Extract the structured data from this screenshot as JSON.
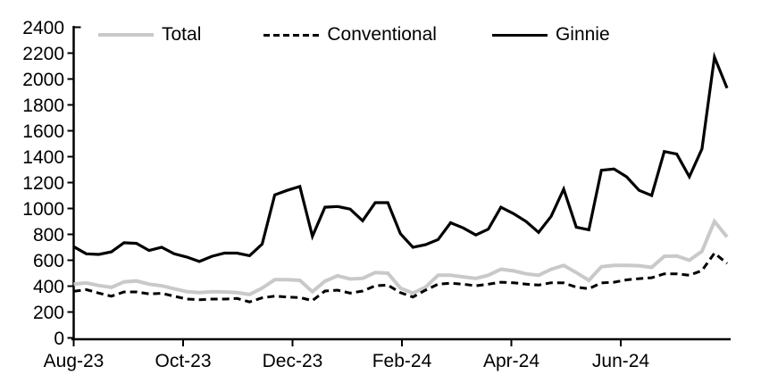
{
  "chart_data": {
    "type": "line",
    "title": "",
    "xlabel": "",
    "ylabel": "",
    "ylim": [
      0,
      2400
    ],
    "y_tick_step": 200,
    "y_tick_labels": [
      "0",
      "200",
      "400",
      "600",
      "800",
      "1000",
      "1200",
      "1400",
      "1600",
      "1800",
      "2000",
      "2200",
      "2400"
    ],
    "x_tick_labels": [
      "Aug-23",
      "Oct-23",
      "Dec-23",
      "Feb-24",
      "Apr-24",
      "Jun-24"
    ],
    "x_frequency": "weekly",
    "grid": false,
    "legend_position": "top",
    "series": [
      {
        "name": "Total",
        "style": "solid",
        "color": "#c9c9c9",
        "values": [
          415,
          425,
          405,
          390,
          433,
          440,
          415,
          403,
          380,
          357,
          350,
          357,
          355,
          350,
          335,
          385,
          450,
          450,
          445,
          357,
          438,
          480,
          455,
          460,
          505,
          500,
          385,
          346,
          392,
          484,
          484,
          472,
          460,
          484,
          530,
          518,
          495,
          484,
          530,
          560,
          505,
          445,
          550,
          560,
          560,
          558,
          545,
          630,
          633,
          600,
          670,
          900,
          780
        ]
      },
      {
        "name": "Conventional",
        "style": "dashed",
        "color": "#000000",
        "values": [
          360,
          373,
          346,
          322,
          355,
          355,
          340,
          345,
          322,
          300,
          295,
          300,
          300,
          305,
          278,
          310,
          323,
          316,
          312,
          288,
          362,
          369,
          346,
          362,
          403,
          408,
          350,
          316,
          369,
          415,
          422,
          415,
          403,
          415,
          430,
          426,
          415,
          408,
          426,
          425,
          392,
          380,
          425,
          430,
          448,
          458,
          465,
          495,
          495,
          484,
          520,
          655,
          575
        ]
      },
      {
        "name": "Ginnie",
        "style": "solid",
        "color": "#000000",
        "values": [
          705,
          650,
          645,
          665,
          735,
          730,
          675,
          700,
          650,
          625,
          590,
          630,
          655,
          655,
          635,
          725,
          1105,
          1140,
          1170,
          785,
          1010,
          1015,
          995,
          905,
          1045,
          1045,
          805,
          700,
          720,
          760,
          890,
          850,
          795,
          840,
          1010,
          960,
          900,
          815,
          940,
          1150,
          855,
          835,
          1295,
          1305,
          1245,
          1140,
          1100,
          1440,
          1420,
          1245,
          1460,
          2170,
          1930
        ]
      }
    ]
  }
}
